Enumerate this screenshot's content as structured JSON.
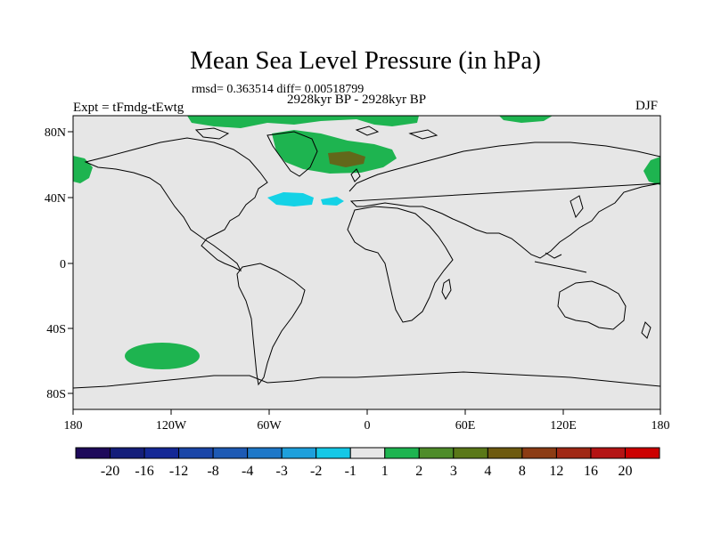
{
  "title": "Mean Sea Level Pressure (in hPa)",
  "stats": "rmsd= 0.363514 diff= 0.00518799",
  "period": "2928kyr BP - 2928kyr BP",
  "experiment": "Expt = tFmdg-tEwtg",
  "season": "DJF",
  "axes": {
    "lat_ticks": [
      "80N",
      "40N",
      "0",
      "40S",
      "80S"
    ],
    "lon_ticks": [
      "180",
      "120W",
      "60W",
      "0",
      "60E",
      "120E",
      "180"
    ]
  },
  "colorbar": {
    "colors": [
      "#1e0a5a",
      "#141e7a",
      "#142896",
      "#1a46a8",
      "#1e5ab4",
      "#1e78c8",
      "#1ea0dc",
      "#14c8e6",
      "#e6e6e6",
      "#1eb450",
      "#4e8c2a",
      "#5a7818",
      "#6e5a10",
      "#8c3c14",
      "#a02814",
      "#b41414",
      "#cc0000"
    ],
    "labels": [
      "-20",
      "-16",
      "-12",
      "-8",
      "-4",
      "-3",
      "-2",
      "-1",
      "1",
      "2",
      "3",
      "4",
      "8",
      "12",
      "16",
      "20"
    ]
  },
  "colors": {
    "ocean": "#e6e6e6",
    "positive_1": "#1eb450",
    "positive_2": "#4e8c2a",
    "positive_3": "#6e5a10",
    "negative_1": "#14d2e6"
  }
}
